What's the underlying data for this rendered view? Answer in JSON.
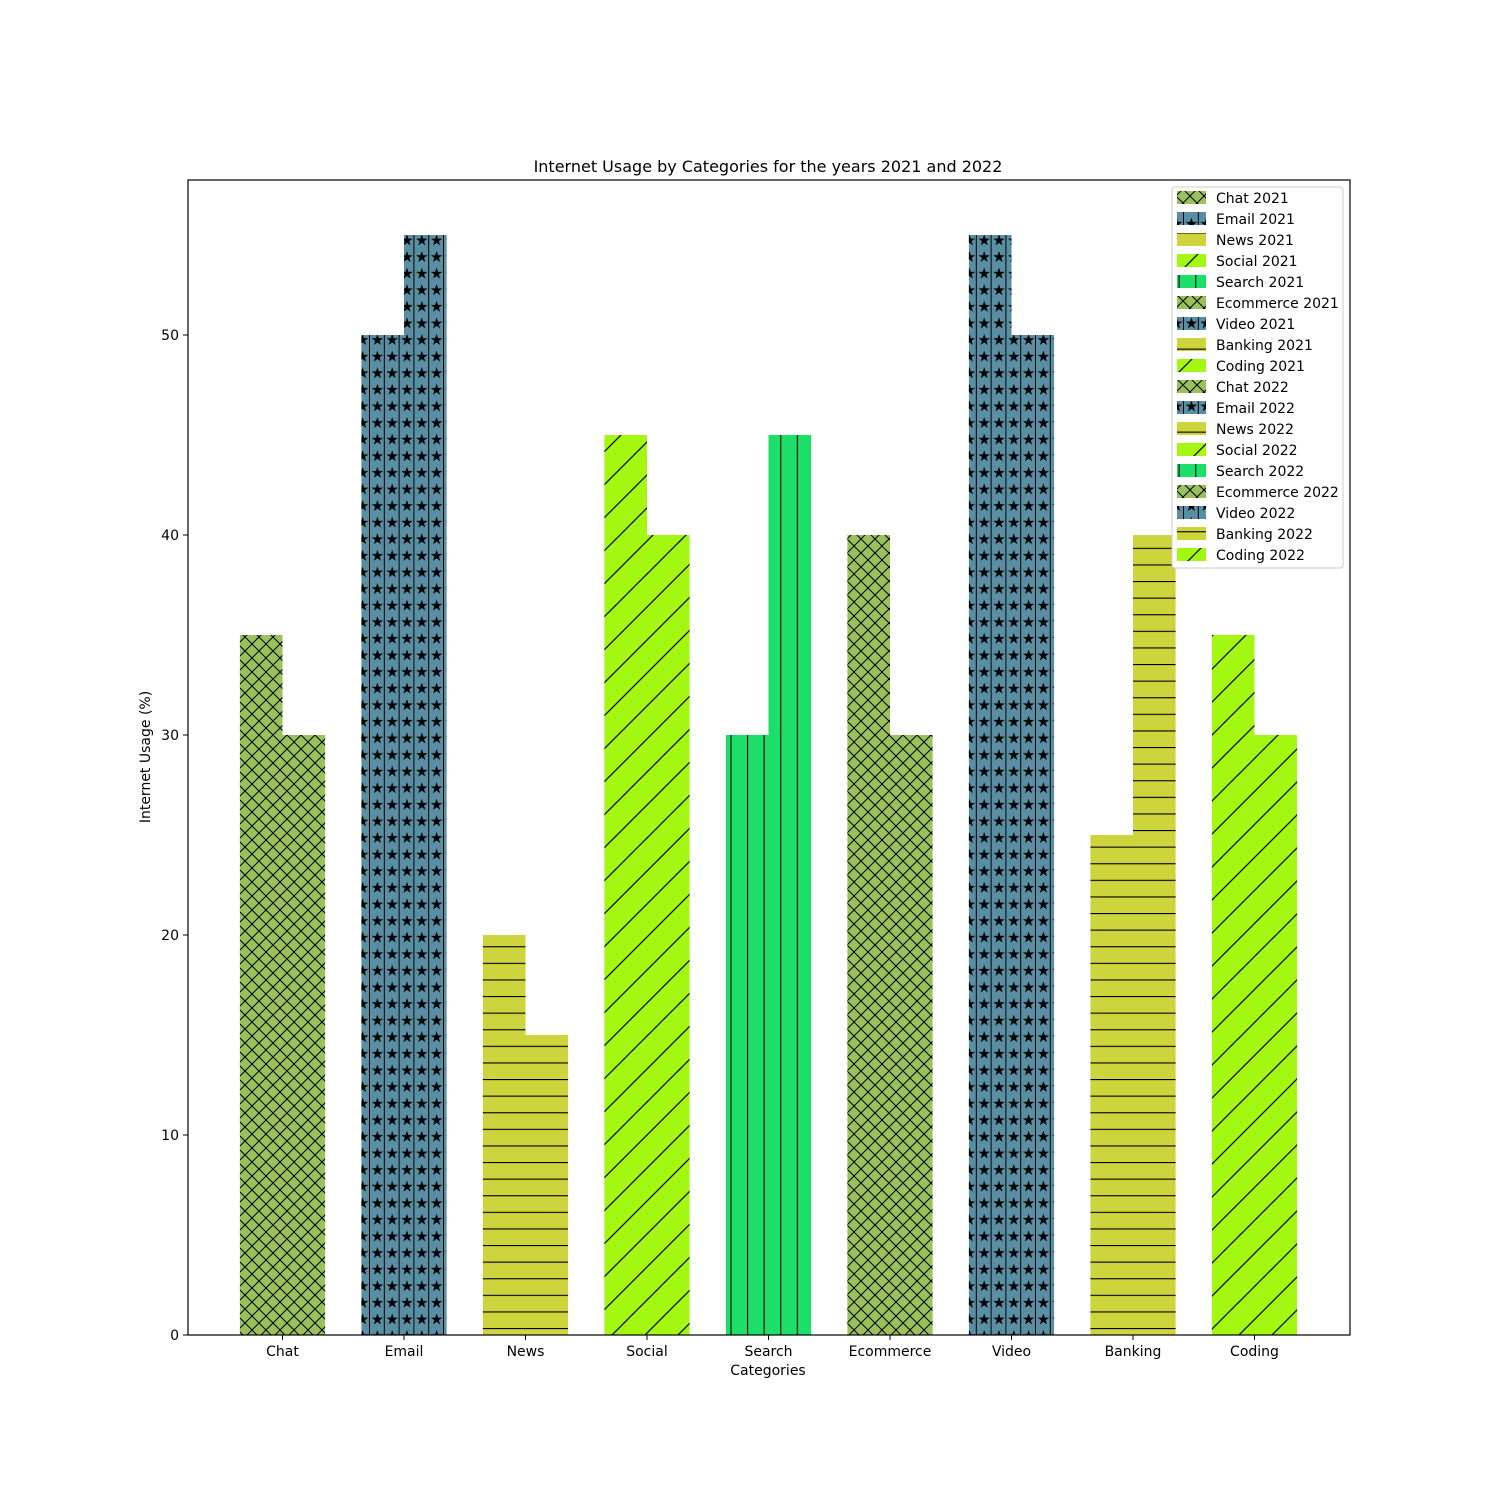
{
  "chart_data": {
    "type": "bar",
    "title": "Internet Usage by Categories for the years 2021 and 2022",
    "xlabel": "Categories",
    "ylabel": "Internet Usage (%)",
    "categories": [
      "Chat",
      "Email",
      "News",
      "Social",
      "Search",
      "Ecommerce",
      "Video",
      "Banking",
      "Coding"
    ],
    "ylim": [
      0,
      57.75
    ],
    "yticks": [
      0,
      10,
      20,
      30,
      40,
      50
    ],
    "grid": false,
    "legend_position": "top-right",
    "series": [
      {
        "year": "2021",
        "values": [
          35,
          50,
          20,
          45,
          30,
          40,
          55,
          25,
          35
        ]
      },
      {
        "year": "2022",
        "values": [
          30,
          55,
          15,
          40,
          45,
          30,
          50,
          40,
          30
        ]
      }
    ],
    "bar_styles": [
      {
        "color": "#9bc25a",
        "hatch": "cross"
      },
      {
        "color": "#5a8fa3",
        "hatch": "star"
      },
      {
        "color": "#cdd43c",
        "hatch": "horizontal"
      },
      {
        "color": "#a3f710",
        "hatch": "diagonal"
      },
      {
        "color": "#1cdf6a",
        "hatch": "vertical"
      },
      {
        "color": "#9bc25a",
        "hatch": "cross"
      },
      {
        "color": "#5a8fa3",
        "hatch": "star"
      },
      {
        "color": "#cdd43c",
        "hatch": "horizontal"
      },
      {
        "color": "#a3f710",
        "hatch": "diagonal"
      }
    ],
    "legend": [
      "Chat 2021",
      "Email 2021",
      "News 2021",
      "Social 2021",
      "Search 2021",
      "Ecommerce 2021",
      "Video 2021",
      "Banking 2021",
      "Coding 2021",
      "Chat 2022",
      "Email 2022",
      "News 2022",
      "Social 2022",
      "Search 2022",
      "Ecommerce 2022",
      "Video 2022",
      "Banking 2022",
      "Coding 2022"
    ]
  }
}
